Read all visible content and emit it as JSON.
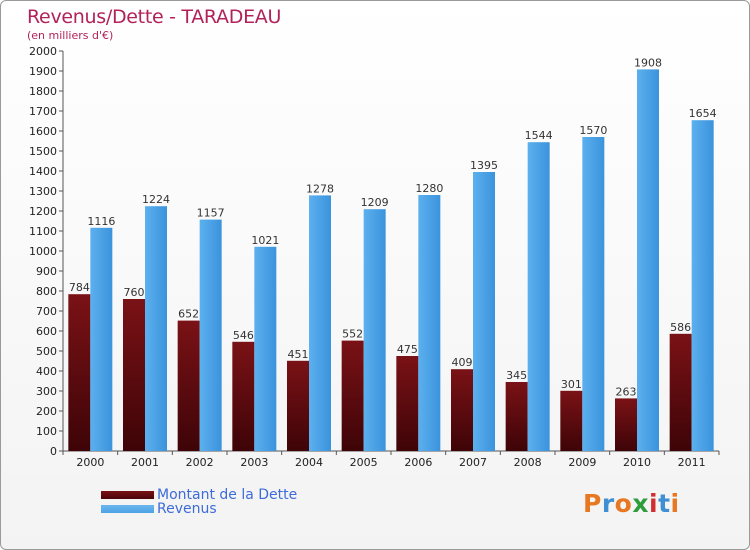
{
  "title": "Revenus/Dette - TARADEAU",
  "subtitle": "(en milliers d'€)",
  "colors": {
    "dette": "#7a1216",
    "revenus": "#4da3e6",
    "title": "#b2215a",
    "legend_text": "#3d6bd8"
  },
  "legend": {
    "dette_label": "Montant de la Dette",
    "revenus_label": "Revenus"
  },
  "logo": {
    "text": "Proxiti"
  },
  "chart_data": {
    "type": "bar",
    "categories": [
      "2000",
      "2001",
      "2002",
      "2003",
      "2004",
      "2005",
      "2006",
      "2007",
      "2008",
      "2009",
      "2010",
      "2011"
    ],
    "series": [
      {
        "name": "Montant de la Dette",
        "values": [
          784,
          760,
          652,
          546,
          451,
          552,
          475,
          409,
          345,
          301,
          263,
          586
        ]
      },
      {
        "name": "Revenus",
        "values": [
          1116,
          1224,
          1157,
          1021,
          1278,
          1209,
          1280,
          1395,
          1544,
          1570,
          1908,
          1654
        ]
      }
    ],
    "ylim": [
      0,
      2000
    ],
    "yticks": [
      0,
      100,
      200,
      300,
      400,
      500,
      600,
      700,
      800,
      900,
      1000,
      1100,
      1200,
      1300,
      1400,
      1500,
      1600,
      1700,
      1800,
      1900,
      2000
    ],
    "grid": false,
    "legend_position": "bottom-left"
  }
}
